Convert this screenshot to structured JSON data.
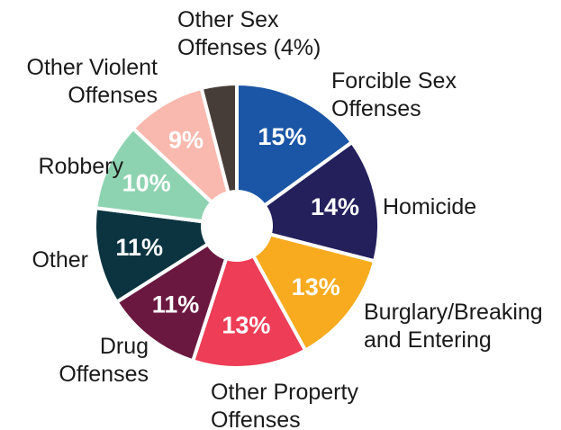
{
  "chart_data": {
    "type": "pie",
    "title": "",
    "donut": true,
    "legend": "none",
    "slices": [
      {
        "label_lines": [
          "Forcible Sex",
          "Offenses"
        ],
        "value": 15,
        "value_label": "15%",
        "color": "#1b56a6",
        "value_label_color": "#ffffff"
      },
      {
        "label_lines": [
          "Homicide"
        ],
        "value": 14,
        "value_label": "14%",
        "color": "#23205c",
        "value_label_color": "#ffffff"
      },
      {
        "label_lines": [
          "Burglary/Breaking",
          "and Entering"
        ],
        "value": 13,
        "value_label": "13%",
        "color": "#f8ab1f",
        "value_label_color": "#ffffff"
      },
      {
        "label_lines": [
          "Other Property",
          "Offenses"
        ],
        "value": 13,
        "value_label": "13%",
        "color": "#ee3d56",
        "value_label_color": "#ffffff"
      },
      {
        "label_lines": [
          "Drug",
          "Offenses"
        ],
        "value": 11,
        "value_label": "11%",
        "color": "#6b1840",
        "value_label_color": "#ffffff"
      },
      {
        "label_lines": [
          "Other"
        ],
        "value": 11,
        "value_label": "11%",
        "color": "#0b3440",
        "value_label_color": "#ffffff"
      },
      {
        "label_lines": [
          "Robbery"
        ],
        "value": 10,
        "value_label": "10%",
        "color": "#8ed3b1",
        "value_label_color": "#ffffff"
      },
      {
        "label_lines": [
          "Other Violent",
          "Offenses"
        ],
        "value": 9,
        "value_label": "9%",
        "color": "#f9b9ae",
        "value_label_color": "#ffffff"
      },
      {
        "label_lines": [
          "Other Sex",
          "Offenses (4%)"
        ],
        "value": 4,
        "value_label": "",
        "color": "#473d38",
        "value_label_color": "#ffffff"
      }
    ]
  }
}
